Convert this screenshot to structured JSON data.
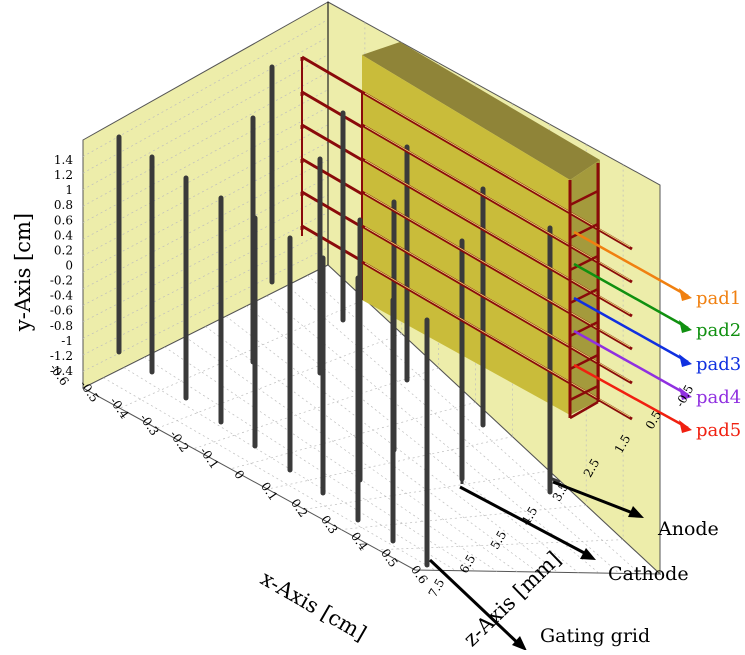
{
  "y_axis": {
    "label": "y-Axis [cm]",
    "ticks": [
      "1.4",
      "1.2",
      "1",
      "0.8",
      "0.6",
      "0.4",
      "0.2",
      "0",
      "-0.2",
      "-0.4",
      "-0.6",
      "-0.8",
      "-1",
      "-1.2",
      "-1.4"
    ]
  },
  "x_axis": {
    "label": "x-Axis [cm]",
    "ticks": [
      "-0.6",
      "-0.5",
      "-0.4",
      "-0.3",
      "-0.2",
      "-0.1",
      "0",
      "0.1",
      "0.2",
      "0.3",
      "0.4",
      "0.5",
      "0.6"
    ]
  },
  "z_axis": {
    "label": "z-Axis [mm]",
    "ticks": [
      "-0.5",
      "0.5",
      "1.5",
      "2.5",
      "3.5",
      "4.5",
      "5.5",
      "6.5",
      "7.5"
    ]
  },
  "callouts": {
    "anode": "Anode",
    "cathode": "Cathode",
    "gating_grid": "Gating grid"
  },
  "pads": [
    {
      "label": "pad1",
      "color": "#f08010"
    },
    {
      "label": "pad2",
      "color": "#109010"
    },
    {
      "label": "pad3",
      "color": "#1030e0"
    },
    {
      "label": "pad4",
      "color": "#9030e0"
    },
    {
      "label": "pad5",
      "color": "#f02010"
    }
  ],
  "colors": {
    "wall": "#ededaa",
    "pad_box_front": "#c9bc3a",
    "pad_box_top": "#8f8438",
    "pad_box_side": "#a49a3c",
    "wire_red": "#8a0a0a",
    "wire_grey": "#3a3a3a"
  }
}
